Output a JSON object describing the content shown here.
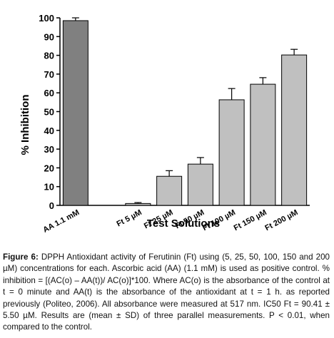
{
  "chart_data": {
    "type": "bar",
    "ylabel": "% Inhibition",
    "xlabel": "Test Solutions",
    "categories": [
      "AA 1.1 mM",
      null,
      "Ft 5 µM",
      "Ft 25 µM",
      "Ft 50 µM",
      "Ft 100 µM",
      "Ft 150 µM",
      "Ft 200 µM"
    ],
    "values": [
      98.5,
      null,
      1,
      15.5,
      22,
      56.3,
      64.6,
      80.2
    ],
    "errors": [
      1.5,
      null,
      0.5,
      3,
      3.5,
      6,
      3.5,
      3
    ],
    "colors": [
      "#808080",
      null,
      "#c0c0c0",
      "#c0c0c0",
      "#c0c0c0",
      "#c0c0c0",
      "#c0c0c0",
      "#c0c0c0"
    ],
    "ylim": [
      0,
      100
    ],
    "yticks": [
      0,
      10,
      20,
      30,
      40,
      50,
      60,
      70,
      80,
      90,
      100
    ],
    "caption_label": "Figure 6:",
    "caption": "DPPH Antioxidant activity of Ferutinin (Ft) using (5, 25, 50, 100, 150 and 200 µM) concentrations for each. Ascorbic acid (AA) (1.1 mM) is used as positive control. % inhibition = [(AC(o) – AA(t))/ AC(o)]*100. Where AC(o) is the absorbance of the control at t = 0 minute and AA(t) is the absorbance of the antioxidant at t = 1 h. as reported previously (Politeo, 2006). All absorbance were measured at 517 nm. IC50 Ft = 90.41 ± 5.50 µM. Results are (mean ± SD) of three parallel measurements. P < 0.01, when compared to the control."
  }
}
